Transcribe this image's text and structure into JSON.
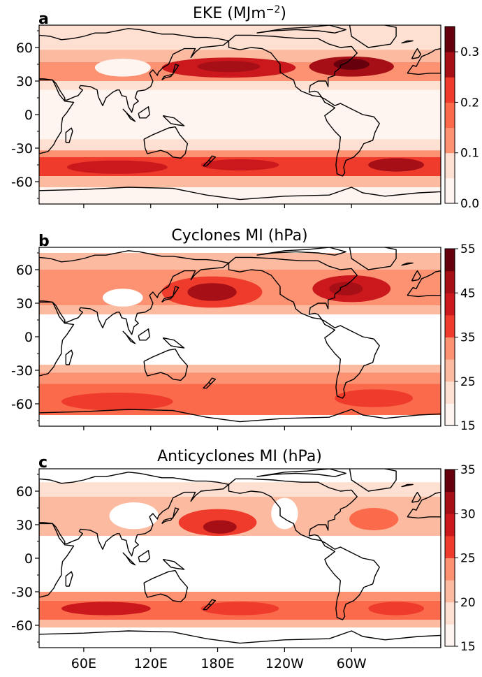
{
  "chart_data": [
    {
      "type": "heatmap",
      "panel_label": "a",
      "title": "EKE (MJm",
      "title_sup": "−2",
      "title_end": ")",
      "xlabel": "",
      "ylabel": "",
      "x_ticks": [],
      "y_ticks": [
        "60",
        "30",
        "0",
        "-30",
        "-60"
      ],
      "y_tick_values": [
        60,
        30,
        0,
        -30,
        -60
      ],
      "colorbar": {
        "ticks": [
          "0.0",
          "0.1",
          "0.2",
          "0.3"
        ],
        "tick_values": [
          0,
          0.1,
          0.2,
          0.3
        ],
        "range": [
          0,
          0.35
        ],
        "levels": 7
      },
      "bands": [
        {
          "lat_top": 80,
          "lat_bot": 58,
          "level": 1
        },
        {
          "lat_top": 58,
          "lat_bot": 47,
          "level": 2
        },
        {
          "lat_top": 47,
          "lat_bot": 30,
          "level": 3
        },
        {
          "lat_top": 30,
          "lat_bot": 22,
          "level": 1
        },
        {
          "lat_top": 22,
          "lat_bot": -22,
          "level": 0
        },
        {
          "lat_top": -22,
          "lat_bot": -32,
          "level": 1
        },
        {
          "lat_top": -32,
          "lat_bot": -38,
          "level": 3
        },
        {
          "lat_top": -38,
          "lat_bot": -55,
          "level": 4
        },
        {
          "lat_top": -55,
          "lat_bot": -65,
          "level": 2
        },
        {
          "lat_top": -65,
          "lat_bot": -80,
          "level": 0
        }
      ],
      "blobs": [
        {
          "lon": 190,
          "lat": 42,
          "rl": 60,
          "rt": 9,
          "level": 5
        },
        {
          "lon": 190,
          "lat": 43,
          "rl": 28,
          "rt": 5,
          "level": 6
        },
        {
          "lon": 300,
          "lat": 43,
          "rl": 38,
          "rt": 9,
          "level": 6
        },
        {
          "lon": 300,
          "lat": 45,
          "rl": 16,
          "rt": 5,
          "level": 7
        },
        {
          "lon": 90,
          "lat": -47,
          "rl": 45,
          "rt": 6,
          "level": 5
        },
        {
          "lon": 200,
          "lat": -45,
          "rl": 35,
          "rt": 5,
          "level": 5
        },
        {
          "lon": 340,
          "lat": -45,
          "rl": 25,
          "rt": 6,
          "level": 6
        },
        {
          "lon": 95,
          "lat": 42,
          "rl": 25,
          "rt": 8,
          "level": 0
        }
      ]
    },
    {
      "type": "heatmap",
      "panel_label": "b",
      "title": "Cyclones MI (hPa)",
      "title_sup": "",
      "title_end": "",
      "xlabel": "",
      "ylabel": "",
      "x_ticks": [],
      "y_ticks": [
        "60",
        "30",
        "0",
        "-30",
        "-60"
      ],
      "y_tick_values": [
        60,
        30,
        0,
        -30,
        -60
      ],
      "colorbar": {
        "ticks": [
          "15",
          "25",
          "35",
          "45",
          "55"
        ],
        "tick_values": [
          15,
          25,
          35,
          45,
          55
        ],
        "range": [
          15,
          55
        ],
        "levels": 8
      },
      "bands": [
        {
          "lat_top": 75,
          "lat_bot": 60,
          "level": 2
        },
        {
          "lat_top": 60,
          "lat_bot": 45,
          "level": 3
        },
        {
          "lat_top": 45,
          "lat_bot": 28,
          "level": 3
        },
        {
          "lat_top": 28,
          "lat_bot": 20,
          "level": 2
        },
        {
          "lat_top": -25,
          "lat_bot": -32,
          "level": 2
        },
        {
          "lat_top": -32,
          "lat_bot": -42,
          "level": 3
        },
        {
          "lat_top": -42,
          "lat_bot": -70,
          "level": 4
        }
      ],
      "blobs": [
        {
          "lon": 175,
          "lat": 40,
          "rl": 45,
          "rt": 14,
          "level": 5
        },
        {
          "lon": 175,
          "lat": 40,
          "rl": 22,
          "rt": 8,
          "level": 7
        },
        {
          "lon": 300,
          "lat": 43,
          "rl": 35,
          "rt": 12,
          "level": 6
        },
        {
          "lon": 295,
          "lat": 43,
          "rl": 15,
          "rt": 6,
          "level": 7
        },
        {
          "lon": 90,
          "lat": -58,
          "rl": 50,
          "rt": 8,
          "level": 5
        },
        {
          "lon": 320,
          "lat": -55,
          "rl": 35,
          "rt": 8,
          "level": 5
        },
        {
          "lon": 95,
          "lat": 35,
          "rl": 18,
          "rt": 8,
          "level": -1
        }
      ]
    },
    {
      "type": "heatmap",
      "panel_label": "c",
      "title": "Anticyclones MI (hPa)",
      "title_sup": "",
      "title_end": "",
      "xlabel": "",
      "ylabel": "",
      "x_ticks": [
        "60E",
        "120E",
        "180E",
        "120W",
        "60W"
      ],
      "x_tick_values": [
        60,
        120,
        180,
        240,
        300
      ],
      "y_ticks": [
        "60",
        "30",
        "0",
        "-30",
        "-60"
      ],
      "y_tick_values": [
        60,
        30,
        0,
        -30,
        -60
      ],
      "colorbar": {
        "ticks": [
          "15",
          "20",
          "25",
          "30",
          "35"
        ],
        "tick_values": [
          15,
          20,
          25,
          30,
          35
        ],
        "range": [
          15,
          35
        ],
        "levels": 8
      },
      "bands": [
        {
          "lat_top": 68,
          "lat_bot": 55,
          "level": 1
        },
        {
          "lat_top": 55,
          "lat_bot": 35,
          "level": 2
        },
        {
          "lat_top": 35,
          "lat_bot": 20,
          "level": 2
        },
        {
          "lat_top": -30,
          "lat_bot": -38,
          "level": 3
        },
        {
          "lat_top": -38,
          "lat_bot": -55,
          "level": 4
        },
        {
          "lat_top": -55,
          "lat_bot": -62,
          "level": 2
        }
      ],
      "blobs": [
        {
          "lon": 180,
          "lat": 32,
          "rl": 35,
          "rt": 12,
          "level": 5
        },
        {
          "lon": 182,
          "lat": 28,
          "rl": 15,
          "rt": 6,
          "level": 7
        },
        {
          "lon": 320,
          "lat": 35,
          "rl": 22,
          "rt": 10,
          "level": 4
        },
        {
          "lon": 80,
          "lat": -45,
          "rl": 40,
          "rt": 6,
          "level": 6
        },
        {
          "lon": 200,
          "lat": -45,
          "rl": 35,
          "rt": 6,
          "level": 5
        },
        {
          "lon": 340,
          "lat": -45,
          "rl": 25,
          "rt": 6,
          "level": 5
        },
        {
          "lon": 105,
          "lat": 38,
          "rl": 22,
          "rt": 12,
          "level": -1
        },
        {
          "lon": 240,
          "lat": 40,
          "rl": 12,
          "rt": 14,
          "level": -1
        }
      ]
    }
  ],
  "colors": [
    "#fff5f0",
    "#fee0d2",
    "#fcbba1",
    "#fc9272",
    "#fb6a4a",
    "#ef3b2c",
    "#cb181d",
    "#a50f15",
    "#67000d"
  ]
}
